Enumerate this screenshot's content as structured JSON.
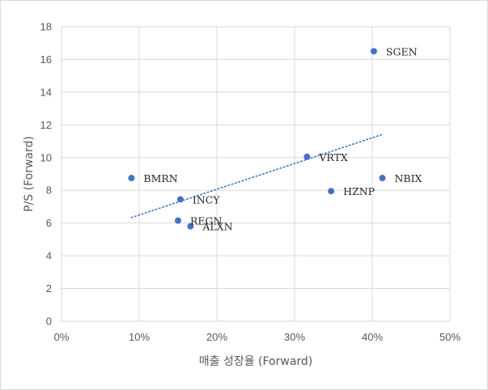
{
  "chart_data": {
    "type": "scatter",
    "xlabel": "매출 성장율 (Forward)",
    "ylabel": "P/S (Forward)",
    "xlim": [
      0,
      0.5
    ],
    "ylim": [
      0,
      18
    ],
    "x_ticks": [
      0,
      0.1,
      0.2,
      0.3,
      0.4,
      0.5
    ],
    "x_tick_labels": [
      "0%",
      "10%",
      "20%",
      "30%",
      "40%",
      "50%"
    ],
    "y_ticks": [
      0,
      2,
      4,
      6,
      8,
      10,
      12,
      14,
      16,
      18
    ],
    "y_tick_labels": [
      "0",
      "2",
      "4",
      "6",
      "8",
      "10",
      "12",
      "14",
      "16",
      "18"
    ],
    "grid": true,
    "legend": "none",
    "marker_color": "#4472C4",
    "trendline": {
      "type": "linear",
      "style": "dotted",
      "color": "#4472C4"
    },
    "points": [
      {
        "label": "SGEN",
        "x": 0.402,
        "y": 16.5
      },
      {
        "label": "VRTX",
        "x": 0.316,
        "y": 10.05
      },
      {
        "label": "NBIX",
        "x": 0.413,
        "y": 8.75
      },
      {
        "label": "HZNP",
        "x": 0.347,
        "y": 7.95
      },
      {
        "label": "BMRN",
        "x": 0.09,
        "y": 8.75
      },
      {
        "label": "INCY",
        "x": 0.153,
        "y": 7.45
      },
      {
        "label": "REGN",
        "x": 0.15,
        "y": 6.15
      },
      {
        "label": "ALXN",
        "x": 0.166,
        "y": 5.8
      }
    ]
  }
}
